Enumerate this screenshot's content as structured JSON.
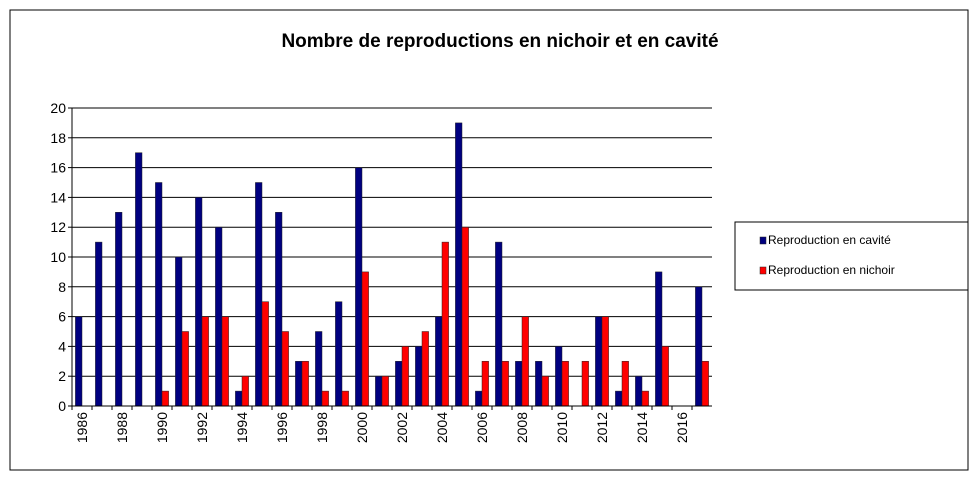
{
  "chart_data": {
    "type": "bar",
    "title": "Nombre de reproductions en nichoir et en cavité",
    "categories": [
      "1986",
      null,
      "1988",
      null,
      "1990",
      null,
      "1992",
      null,
      "1994",
      null,
      "1996",
      null,
      "1998",
      null,
      "2000",
      null,
      "2002",
      null,
      "2004",
      null,
      "2006",
      null,
      "2008",
      null,
      "2010",
      null,
      "2012",
      null,
      "2014",
      null,
      "2016",
      null
    ],
    "series": [
      {
        "name": "Reproduction en cavité",
        "color": "#000080",
        "values": [
          6,
          11,
          13,
          17,
          15,
          10,
          14,
          12,
          1,
          15,
          13,
          3,
          5,
          7,
          16,
          2,
          3,
          4,
          6,
          19,
          1,
          11,
          3,
          3,
          4,
          0,
          6,
          1,
          2,
          9,
          0,
          8
        ]
      },
      {
        "name": "Reproduction en nichoir",
        "color": "#ff0000",
        "values": [
          0,
          0,
          0,
          0,
          1,
          5,
          6,
          6,
          2,
          7,
          5,
          3,
          1,
          1,
          9,
          2,
          4,
          5,
          11,
          12,
          3,
          3,
          6,
          2,
          3,
          3,
          6,
          3,
          1,
          4,
          0,
          3
        ]
      }
    ],
    "ylim": [
      0,
      20
    ],
    "yticks": [
      0,
      2,
      4,
      6,
      8,
      10,
      12,
      14,
      16,
      18,
      20
    ],
    "grid": true,
    "legend": "right"
  }
}
